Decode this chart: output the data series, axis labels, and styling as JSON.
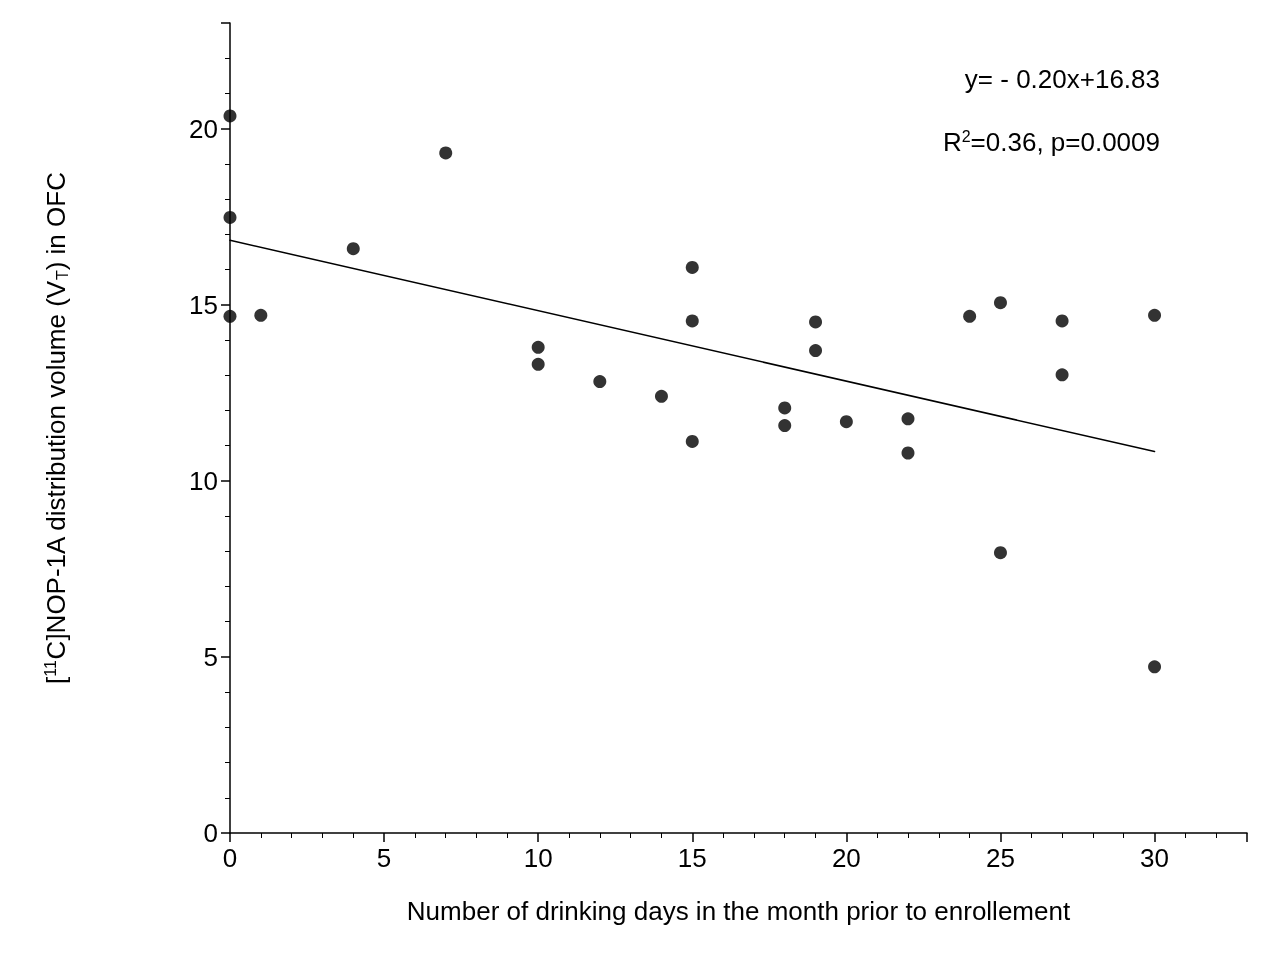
{
  "chart_data": {
    "type": "scatter",
    "xlabel": "Number of drinking days in the month prior to enrollement",
    "ylabel": "[$^{11}$C]NOP-1A distribution volume (V$_{T}$) in OFC",
    "annotations": [
      "y= - 0.20x+16.83",
      "R$^{2}$=0.36, p=0.0009"
    ],
    "xlim": [
      0,
      33
    ],
    "xticks": [
      0,
      5,
      10,
      15,
      20,
      25,
      30
    ],
    "ylim": [
      0,
      23
    ],
    "yticks": [
      0,
      5,
      10,
      15,
      20
    ],
    "grid": false,
    "marker": "circle",
    "series": [
      {
        "color": "#000000",
        "x": [
          0,
          0,
          0,
          1,
          4,
          7,
          10,
          10,
          12,
          14,
          15,
          15,
          15,
          18,
          18,
          19,
          19,
          20,
          22,
          22,
          24,
          25,
          25,
          27,
          27,
          30,
          30
        ],
        "values": [
          20.36,
          17.48,
          14.67,
          14.7,
          16.59,
          19.31,
          13.79,
          13.31,
          12.82,
          12.4,
          16.06,
          14.54,
          11.12,
          12.07,
          11.57,
          14.51,
          13.7,
          11.68,
          11.76,
          10.79,
          14.67,
          15.06,
          7.96,
          14.54,
          13.01,
          14.7,
          4.72
        ]
      },
      {
        "type": "line",
        "color": "#000000",
        "marker": "none",
        "line_style": "solid",
        "x": [
          0,
          30
        ],
        "values": [
          16.83,
          10.83
        ]
      }
    ]
  }
}
